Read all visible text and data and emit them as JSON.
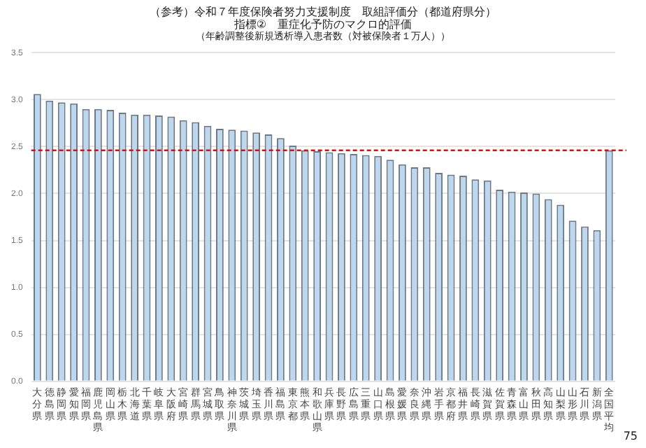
{
  "chart_data": {
    "type": "bar",
    "title": "（参考）令和７年度保険者努力支援制度　取組評価分（都道府県分）",
    "subtitle": "指標②　重症化予防のマクロ的評価",
    "annotations": [
      "（年齢調整後新規透析導入患者数（対被保険者１万人））",
      "75"
    ],
    "categories": [
      "大分県",
      "徳島県",
      "静岡県",
      "愛知県",
      "福岡県",
      "鹿児島県",
      "岡山県",
      "栃木県",
      "北海道",
      "千葉県",
      "岐阜県",
      "大阪府",
      "宮崎県",
      "群馬県",
      "宮城県",
      "鳥取県",
      "神奈川県",
      "茨城県",
      "埼玉県",
      "香川県",
      "福島県",
      "東京都",
      "熊本県",
      "和歌山県",
      "兵庫県",
      "長野県",
      "広島県",
      "三重県",
      "山口県",
      "島根県",
      "愛媛県",
      "奈良県",
      "沖縄県",
      "岩手県",
      "京都府",
      "福井県",
      "長崎県",
      "滋賀県",
      "佐賀県",
      "青森県",
      "富山県",
      "秋田県",
      "高知県",
      "山梨県",
      "山形県",
      "石川県",
      "新潟県",
      "全国平均"
    ],
    "values": [
      3.06,
      2.99,
      2.97,
      2.96,
      2.9,
      2.9,
      2.89,
      2.86,
      2.84,
      2.84,
      2.83,
      2.82,
      2.78,
      2.76,
      2.72,
      2.69,
      2.68,
      2.67,
      2.65,
      2.63,
      2.59,
      2.51,
      2.46,
      2.45,
      2.44,
      2.43,
      2.42,
      2.41,
      2.4,
      2.36,
      2.31,
      2.28,
      2.28,
      2.22,
      2.2,
      2.19,
      2.15,
      2.14,
      2.04,
      2.02,
      2.01,
      2.0,
      1.94,
      1.88,
      1.71,
      1.65,
      1.61,
      2.46
    ],
    "color": "#bdd7ee",
    "ylim": [
      0,
      3.5
    ],
    "yticks": [
      {
        "value": 0,
        "label": "0.0"
      },
      0.5,
      {
        "value": 1,
        "label": "1.0"
      },
      1.5,
      {
        "value": 2,
        "label": "2.0"
      },
      2.5,
      {
        "value": 3,
        "label": "3.0"
      },
      3.5
    ],
    "grid": "y",
    "legend": false,
    "ref_lines": [
      {
        "axis": "y",
        "value": 2.46,
        "color": "#ff0000",
        "line_style": "dashed"
      }
    ]
  }
}
